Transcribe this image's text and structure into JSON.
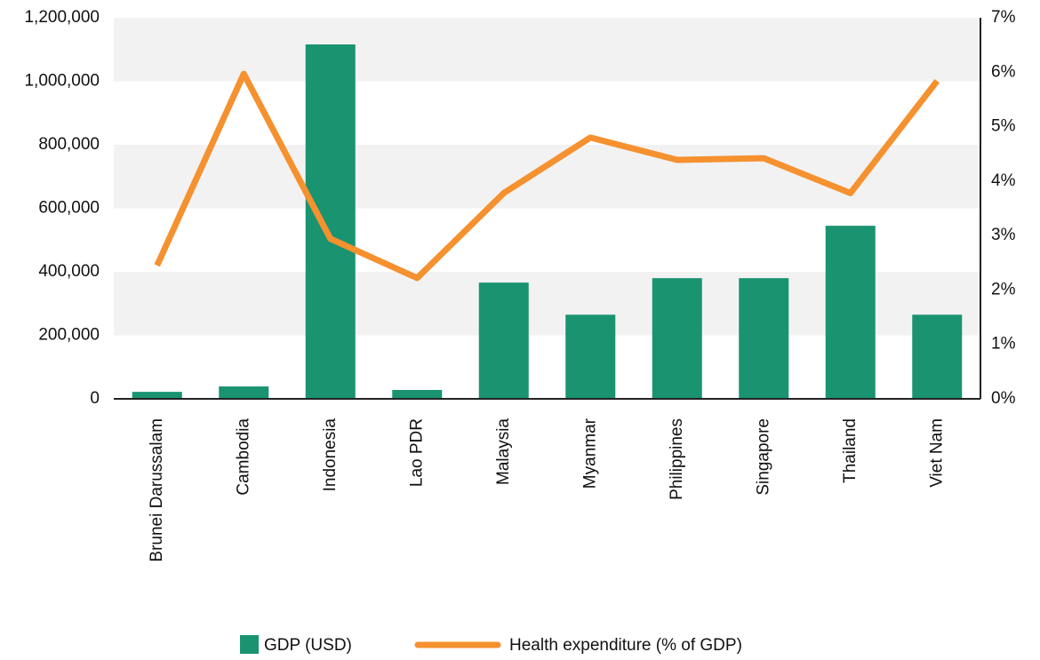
{
  "chart_data": {
    "type": "bar_line",
    "categories": [
      "Brunei Darussalam",
      "Cambodia",
      "Indonesia",
      "Lao PDR",
      "Malaysia",
      "Myanmar",
      "Philippines",
      "Singapore",
      "Thailand",
      "Viet Nam"
    ],
    "series": [
      {
        "name": "GDP (USD)",
        "color": "#1a9370",
        "type": "bar",
        "values": [
          22000,
          39000,
          1116000,
          28000,
          366000,
          265000,
          380000,
          380000,
          545000,
          265000
        ]
      },
      {
        "name": "Health expenditure (% of GDP)",
        "color": "#f5912f",
        "type": "line",
        "axis": "y2",
        "values": [
          2.45,
          5.97,
          2.94,
          2.22,
          3.78,
          4.8,
          4.39,
          4.42,
          3.78,
          5.84
        ]
      }
    ],
    "ylim": [
      0,
      1200000
    ],
    "yticks": [
      0,
      {
        "value": 200000,
        "label": "200,000"
      },
      {
        "value": 400000,
        "label": "400,000"
      },
      {
        "value": 600000,
        "label": "600,000"
      },
      {
        "value": 800000,
        "label": "800,000"
      },
      {
        "value": 1000000,
        "label": "1,000,000"
      },
      {
        "value": 1200000,
        "label": "1,200,000"
      }
    ],
    "y2lim": [
      0,
      7
    ],
    "y2ticks": [
      {
        "value": 0,
        "label": "0%"
      },
      {
        "value": 1,
        "label": "1%"
      },
      {
        "value": 2,
        "label": "2%"
      },
      {
        "value": 3,
        "label": "3%"
      },
      {
        "value": 4,
        "label": "4%"
      },
      {
        "value": 5,
        "label": "5%"
      },
      {
        "value": 6,
        "label": "6%"
      },
      {
        "value": 7,
        "label": "7%"
      }
    ],
    "grid": "bands",
    "legend": "bottom"
  }
}
